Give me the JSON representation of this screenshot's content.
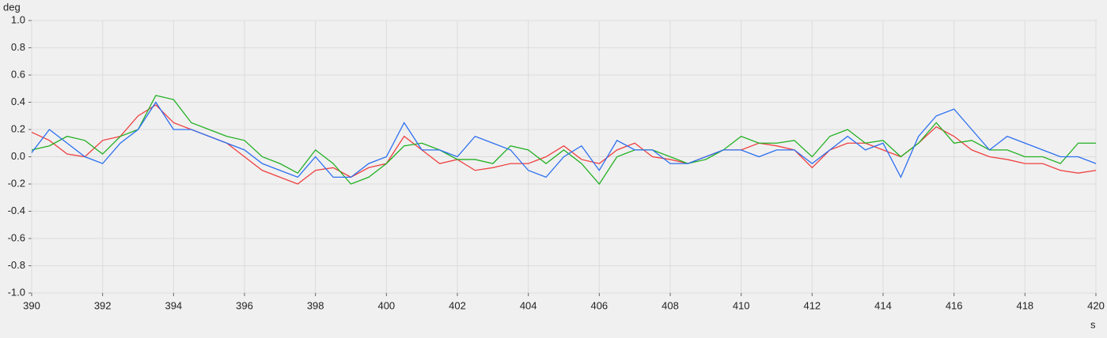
{
  "chart_data": {
    "type": "line",
    "ylabel": "deg",
    "xlabel": "s",
    "x": [
      390,
      390.5,
      391,
      391.5,
      392,
      392.5,
      393,
      393.5,
      394,
      394.5,
      395,
      395.5,
      396,
      396.5,
      397,
      397.5,
      398,
      398.5,
      399,
      399.5,
      400,
      400.5,
      401,
      401.5,
      402,
      402.5,
      403,
      403.5,
      404,
      404.5,
      405,
      405.5,
      406,
      406.5,
      407,
      407.5,
      408,
      408.5,
      409,
      409.5,
      410,
      410.5,
      411,
      411.5,
      412,
      412.5,
      413,
      413.5,
      414,
      414.5,
      415,
      415.5,
      416,
      416.5,
      417,
      417.5,
      418,
      418.5,
      419,
      419.5,
      420
    ],
    "series": [
      {
        "color": "#ef4040",
        "values": [
          0.18,
          0.12,
          0.02,
          0,
          0.12,
          0.15,
          0.3,
          0.38,
          0.25,
          0.2,
          0.15,
          0.1,
          0,
          -0.1,
          -0.15,
          -0.2,
          -0.1,
          -0.08,
          -0.15,
          -0.08,
          -0.05,
          0.15,
          0.05,
          -0.05,
          -0.02,
          -0.1,
          -0.08,
          -0.05,
          -0.05,
          0,
          0.08,
          -0.02,
          -0.05,
          0.05,
          0.1,
          0,
          -0.02,
          -0.05,
          0,
          0.05,
          0.05,
          0.1,
          0.08,
          0.05,
          -0.08,
          0.05,
          0.1,
          0.1,
          0.05,
          0,
          0.1,
          0.22,
          0.15,
          0.05,
          0,
          -0.02,
          -0.05,
          -0.05,
          -0.1,
          -0.12,
          -0.1
        ]
      },
      {
        "color": "#22b022",
        "values": [
          0.05,
          0.08,
          0.15,
          0.12,
          0.02,
          0.15,
          0.2,
          0.45,
          0.42,
          0.25,
          0.2,
          0.15,
          0.12,
          0,
          -0.05,
          -0.12,
          0.05,
          -0.05,
          -0.2,
          -0.15,
          -0.05,
          0.08,
          0.1,
          0.05,
          -0.02,
          -0.02,
          -0.05,
          0.08,
          0.05,
          -0.05,
          0.05,
          -0.05,
          -0.2,
          0,
          0.05,
          0.05,
          0,
          -0.05,
          -0.02,
          0.05,
          0.15,
          0.1,
          0.1,
          0.12,
          0,
          0.15,
          0.2,
          0.1,
          0.12,
          0,
          0.1,
          0.25,
          0.1,
          0.12,
          0.05,
          0.05,
          0,
          0,
          -0.05,
          0.1,
          0.1
        ]
      },
      {
        "color": "#2c6ff0",
        "values": [
          0.03,
          0.2,
          0.1,
          0,
          -0.05,
          0.1,
          0.2,
          0.4,
          0.2,
          0.2,
          0.15,
          0.1,
          0.05,
          -0.05,
          -0.1,
          -0.15,
          0,
          -0.15,
          -0.15,
          -0.05,
          0,
          0.25,
          0.05,
          0.05,
          0,
          0.15,
          0.1,
          0.05,
          -0.1,
          -0.15,
          0,
          0.08,
          -0.1,
          0.12,
          0.05,
          0.05,
          -0.05,
          -0.05,
          0,
          0.05,
          0.05,
          0,
          0.05,
          0.05,
          -0.05,
          0.05,
          0.15,
          0.05,
          0.1,
          -0.15,
          0.15,
          0.3,
          0.35,
          0.2,
          0.05,
          0.15,
          0.1,
          0.05,
          0,
          0,
          -0.05
        ]
      }
    ],
    "xlim": [
      390,
      420
    ],
    "xticks": [
      390,
      392,
      394,
      396,
      398,
      400,
      402,
      404,
      406,
      408,
      410,
      412,
      414,
      416,
      418,
      420
    ],
    "ylim": [
      -1,
      1
    ],
    "yticks": [
      {
        "value": -1,
        "label": "-1.0"
      },
      -0.8,
      -0.6,
      -0.4,
      -0.2,
      {
        "value": 0,
        "label": "0.0"
      },
      0.2,
      0.4,
      0.6,
      0.8,
      {
        "value": 1,
        "label": "1.0"
      }
    ],
    "grid": true
  }
}
